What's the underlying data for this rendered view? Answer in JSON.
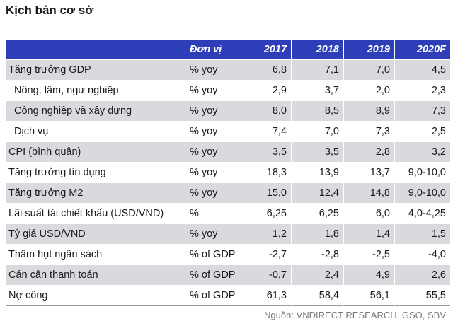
{
  "title": "Kịch bản cơ sở",
  "table": {
    "headers": {
      "label": "",
      "unit": "Đơn vị",
      "years": [
        "2017",
        "2018",
        "2019",
        "2020F"
      ]
    },
    "rows": [
      {
        "label": "Tăng trưởng GDP",
        "unit": "% yoy",
        "values": [
          "6,8",
          "7,1",
          "7,0",
          "4,5"
        ],
        "sub": false
      },
      {
        "label": "Nông, lâm, ngư nghiệp",
        "unit": "% yoy",
        "values": [
          "2,9",
          "3,7",
          "2,0",
          "2,3"
        ],
        "sub": true
      },
      {
        "label": "Công nghiệp và xây dựng",
        "unit": "% yoy",
        "values": [
          "8,0",
          "8,5",
          "8,9",
          "7,3"
        ],
        "sub": true
      },
      {
        "label": "Dịch vụ",
        "unit": "% yoy",
        "values": [
          "7,4",
          "7,0",
          "7,3",
          "2,5"
        ],
        "sub": true
      },
      {
        "label": "CPI (bình quân)",
        "unit": "% yoy",
        "values": [
          "3,5",
          "3,5",
          "2,8",
          "3,2"
        ],
        "sub": false
      },
      {
        "label": "Tăng trưởng tín dụng",
        "unit": "% yoy",
        "values": [
          "18,3",
          "13,9",
          "13,7",
          "9,0-10,0"
        ],
        "sub": false
      },
      {
        "label": "Tăng trưởng M2",
        "unit": "% yoy",
        "values": [
          "15,0",
          "12,4",
          "14,8",
          "9,0-10,0"
        ],
        "sub": false
      },
      {
        "label": "Lãi suất tái chiết khấu (USD/VND)",
        "unit": "%",
        "values": [
          "6,25",
          "6,25",
          "6,0",
          "4,0-4,25"
        ],
        "sub": false
      },
      {
        "label": "Tỷ giá USD/VND",
        "unit": "% yoy",
        "values": [
          "1,2",
          "1,8",
          "1,4",
          "1,5"
        ],
        "sub": false
      },
      {
        "label": "Thâm hụt ngân sách",
        "unit": "% of GDP",
        "values": [
          "-2,7",
          "-2,8",
          "-2,5",
          "-4,0"
        ],
        "sub": false
      },
      {
        "label": "Cán cân thanh toán",
        "unit": "% of GDP",
        "values": [
          "-0,7",
          "2,4",
          "4,9",
          "2,6"
        ],
        "sub": false
      },
      {
        "label": "Nợ công",
        "unit": "% of GDP",
        "values": [
          "61,3",
          "58,4",
          "56,1",
          "55,5"
        ],
        "sub": false
      }
    ]
  },
  "source": "Nguồn: VNDIRECT RESEARCH, GSO, SBV",
  "colors": {
    "header_bg": "#2e3eb8",
    "header_text": "#ffffff",
    "row_shade": "#d9dade",
    "row_white": "#ffffff"
  }
}
